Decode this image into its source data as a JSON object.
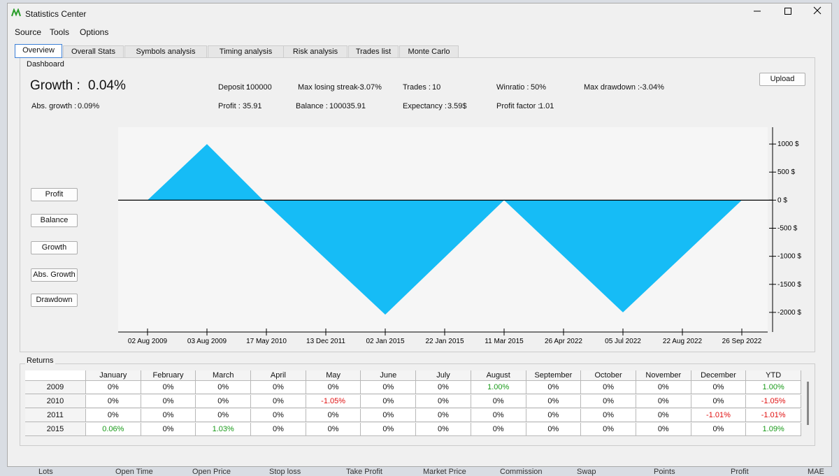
{
  "window": {
    "title": "Statistics Center"
  },
  "menu": [
    "Source",
    "Tools",
    "Options"
  ],
  "tabs": [
    "Overview",
    "Overall Stats",
    "Symbols analysis",
    "Timing analysis",
    "Risk analysis",
    "Trades list",
    "Monte Carlo"
  ],
  "dashboard": {
    "label": "Dashboard",
    "growth": {
      "label": "Growth :",
      "value": "0.04%"
    },
    "abs_growth": {
      "label": "Abs. growth :",
      "value": "0.09%"
    },
    "stats": [
      {
        "label": "Deposit :",
        "value": "100000"
      },
      {
        "label": "Profit :",
        "value": "35.91"
      },
      {
        "label": "Max losing streak :",
        "value": "-3.07%"
      },
      {
        "label": "Balance :",
        "value": "100035.91"
      },
      {
        "label": "Trades :",
        "value": "10"
      },
      {
        "label": "Expectancy :",
        "value": "3.59$"
      },
      {
        "label": "Winratio :",
        "value": "50%"
      },
      {
        "label": "Profit factor :",
        "value": "1.01"
      },
      {
        "label": "Max drawdown :",
        "value": "-3.04%"
      }
    ],
    "upload_button": "Upload",
    "chart_buttons": [
      "Profit",
      "Balance",
      "Growth",
      "Abs. Growth",
      "Drawdown"
    ]
  },
  "chart_data": {
    "type": "area",
    "categories": [
      "02 Aug 2009",
      "03 Aug 2009",
      "17 May 2010",
      "13 Dec 2011",
      "02 Jan 2015",
      "22 Jan 2015",
      "11 Mar 2015",
      "26 Apr 2022",
      "05 Jul 2022",
      "22 Aug 2022",
      "26 Sep 2022"
    ],
    "values": [
      0,
      1000,
      -60,
      -1050,
      -2040,
      -1020,
      0,
      -1000,
      -2000,
      -1000,
      0
    ],
    "color": "#16bcf6",
    "ylim": [
      -2350,
      1300
    ],
    "yticks": [
      {
        "value": 1000,
        "label": "1000 $"
      },
      {
        "value": 500,
        "label": "500 $"
      },
      {
        "value": 0,
        "label": "0 $"
      },
      {
        "value": -500,
        "label": "-500 $"
      },
      {
        "value": -1000,
        "label": "-1000 $"
      },
      {
        "value": -1500,
        "label": "-1500 $"
      },
      {
        "value": -2000,
        "label": "-2000 $"
      }
    ]
  },
  "returns": {
    "label": "Returns",
    "columns": [
      "January",
      "February",
      "March",
      "April",
      "May",
      "June",
      "July",
      "August",
      "September",
      "October",
      "November",
      "December",
      "YTD"
    ],
    "rows": [
      {
        "year": "2009",
        "cells": [
          "0%",
          "0%",
          "0%",
          "0%",
          "0%",
          "0%",
          "0%",
          "1.00%",
          "0%",
          "0%",
          "0%",
          "0%",
          "1.00%"
        ]
      },
      {
        "year": "2010",
        "cells": [
          "0%",
          "0%",
          "0%",
          "0%",
          "-1.05%",
          "0%",
          "0%",
          "0%",
          "0%",
          "0%",
          "0%",
          "0%",
          "-1.05%"
        ]
      },
      {
        "year": "2011",
        "cells": [
          "0%",
          "0%",
          "0%",
          "0%",
          "0%",
          "0%",
          "0%",
          "0%",
          "0%",
          "0%",
          "0%",
          "-1.01%",
          "-1.01%"
        ]
      },
      {
        "year": "2015",
        "cells": [
          "0.06%",
          "0%",
          "1.03%",
          "0%",
          "0%",
          "0%",
          "0%",
          "0%",
          "0%",
          "0%",
          "0%",
          "0%",
          "1.09%"
        ]
      }
    ]
  },
  "background_columns": [
    "Lots",
    "Open Time",
    "Open Price",
    "Stop loss",
    "Take Profit",
    "Market Price",
    "Commission",
    "Swap",
    "Points",
    "Profit",
    "MAE"
  ]
}
